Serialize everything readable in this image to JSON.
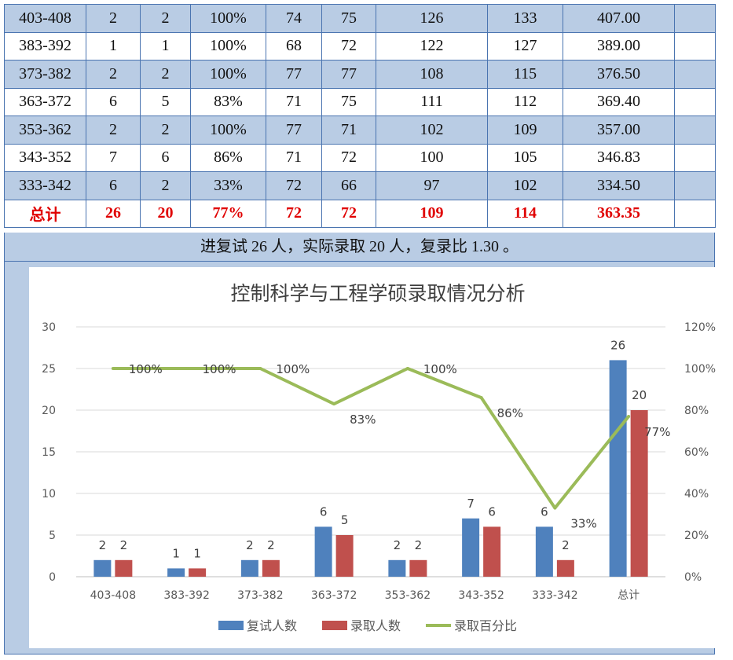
{
  "table": {
    "rows": [
      {
        "range": "403-408",
        "retest": "2",
        "admitted": "2",
        "ratio": "100%",
        "c1": "74",
        "c2": "75",
        "c3": "126",
        "c4": "133",
        "avg": "407.00"
      },
      {
        "range": "383-392",
        "retest": "1",
        "admitted": "1",
        "ratio": "100%",
        "c1": "68",
        "c2": "72",
        "c3": "122",
        "c4": "127",
        "avg": "389.00"
      },
      {
        "range": "373-382",
        "retest": "2",
        "admitted": "2",
        "ratio": "100%",
        "c1": "77",
        "c2": "77",
        "c3": "108",
        "c4": "115",
        "avg": "376.50"
      },
      {
        "range": "363-372",
        "retest": "6",
        "admitted": "5",
        "ratio": "83%",
        "c1": "71",
        "c2": "75",
        "c3": "111",
        "c4": "112",
        "avg": "369.40"
      },
      {
        "range": "353-362",
        "retest": "2",
        "admitted": "2",
        "ratio": "100%",
        "c1": "77",
        "c2": "71",
        "c3": "102",
        "c4": "109",
        "avg": "357.00"
      },
      {
        "range": "343-352",
        "retest": "7",
        "admitted": "6",
        "ratio": "86%",
        "c1": "71",
        "c2": "72",
        "c3": "100",
        "c4": "105",
        "avg": "346.83"
      },
      {
        "range": "333-342",
        "retest": "6",
        "admitted": "2",
        "ratio": "33%",
        "c1": "72",
        "c2": "66",
        "c3": "97",
        "c4": "102",
        "avg": "334.50"
      }
    ],
    "total": {
      "range": "总计",
      "retest": "26",
      "admitted": "20",
      "ratio": "77%",
      "c1": "72",
      "c2": "72",
      "c3": "109",
      "c4": "114",
      "avg": "363.35"
    },
    "summary": "进复试 26 人，实际录取 20 人，复录比 1.30 。"
  },
  "colors": {
    "bar_retest": "#4f81bd",
    "bar_admitted": "#c0504d",
    "line_ratio": "#9bbb59",
    "total_text": "#e00000"
  },
  "chart_data": {
    "type": "bar",
    "title": "控制科学与工程学硕录取情况分析",
    "categories": [
      "403-408",
      "383-392",
      "373-382",
      "363-372",
      "353-362",
      "343-352",
      "333-342",
      "总计"
    ],
    "series": [
      {
        "name": "复试人数",
        "kind": "bar",
        "axis": "left",
        "values": [
          2,
          1,
          2,
          6,
          2,
          7,
          6,
          26
        ]
      },
      {
        "name": "录取人数",
        "kind": "bar",
        "axis": "left",
        "values": [
          2,
          1,
          2,
          5,
          2,
          6,
          2,
          20
        ]
      },
      {
        "name": "录取百分比",
        "kind": "line",
        "axis": "right",
        "values": [
          100,
          100,
          100,
          83,
          100,
          86,
          33,
          77
        ]
      }
    ],
    "ylim": [
      0,
      30
    ],
    "y_ticks": [
      "0",
      "5",
      "10",
      "15",
      "20",
      "25",
      "30"
    ],
    "y2lim": [
      0,
      120
    ],
    "y2_ticks": [
      "0%",
      "20%",
      "40%",
      "60%",
      "80%",
      "100%",
      "120%"
    ],
    "legend_position": "bottom",
    "grid": true
  }
}
